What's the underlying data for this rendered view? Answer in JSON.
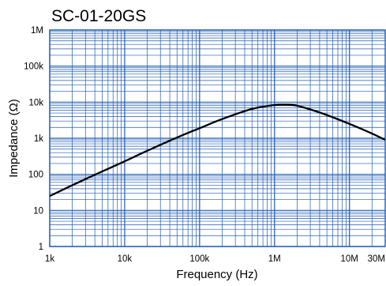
{
  "chart_data": {
    "type": "line",
    "title": "SC-01-20GS",
    "xlabel": "Frequency (Hz)",
    "ylabel": "Impedance (Ω)",
    "x_scale": "log",
    "y_scale": "log",
    "xlim": [
      1000,
      30000000
    ],
    "ylim": [
      1,
      1000000
    ],
    "grid": true,
    "x_ticks": [
      {
        "value": 1000,
        "label": "1k"
      },
      {
        "value": 10000,
        "label": "10k"
      },
      {
        "value": 100000,
        "label": "100k"
      },
      {
        "value": 1000000,
        "label": "1M"
      },
      {
        "value": 10000000,
        "label": "10M"
      },
      {
        "value": 30000000,
        "label": "30M"
      }
    ],
    "y_ticks": [
      {
        "value": 1,
        "label": "1"
      },
      {
        "value": 10,
        "label": "10"
      },
      {
        "value": 100,
        "label": "100"
      },
      {
        "value": 1000,
        "label": "1k"
      },
      {
        "value": 10000,
        "label": "10k"
      },
      {
        "value": 100000,
        "label": "100k"
      },
      {
        "value": 1000000,
        "label": "1M"
      }
    ],
    "colors": {
      "line": "#000000",
      "grid": "#1f5bb0",
      "axis": "#1f5bb0"
    },
    "series": [
      {
        "x": [
          1000,
          2000,
          5000,
          10000,
          20000,
          50000,
          100000,
          200000,
          500000,
          1000000,
          1500000,
          2000000,
          3000000,
          5000000,
          10000000,
          20000000,
          30000000
        ],
        "values": [
          25,
          50,
          120,
          230,
          450,
          1050,
          1900,
          3400,
          6500,
          8300,
          8500,
          8000,
          6300,
          4400,
          2500,
          1350,
          900
        ]
      }
    ]
  }
}
